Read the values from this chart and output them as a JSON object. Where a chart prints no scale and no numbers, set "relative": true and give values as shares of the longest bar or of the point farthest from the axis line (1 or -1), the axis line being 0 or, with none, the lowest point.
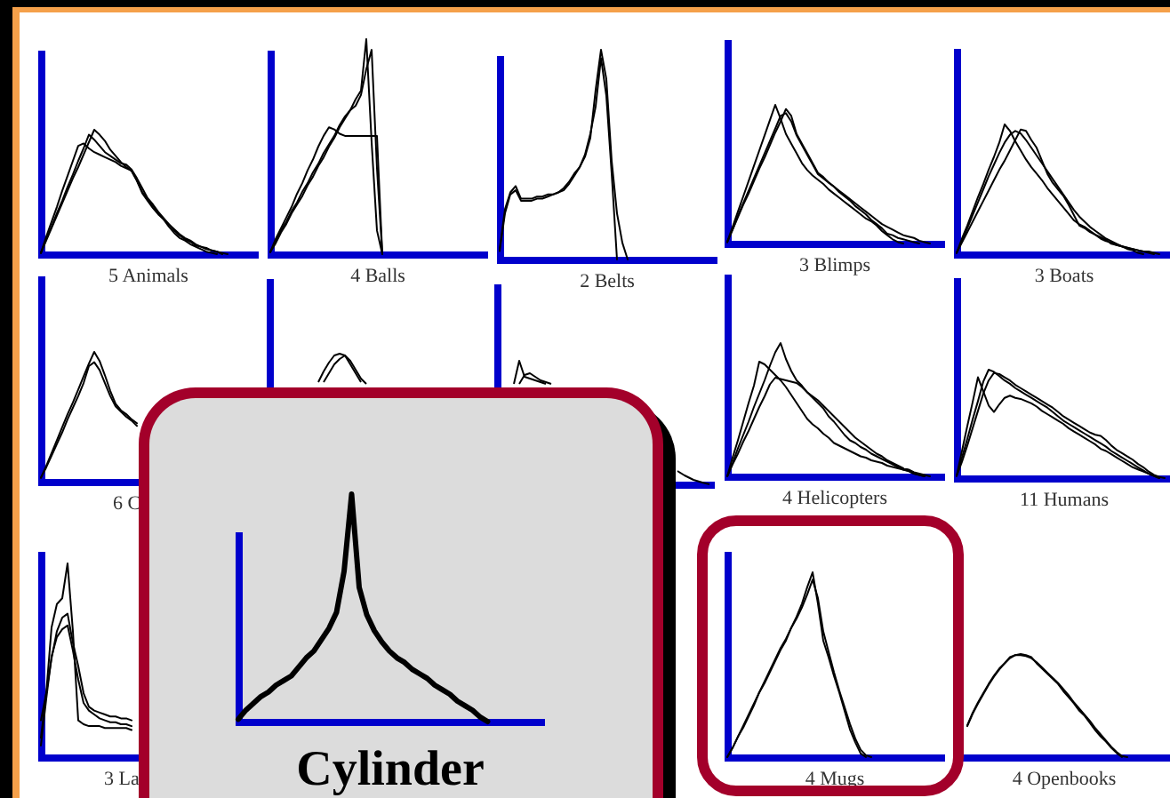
{
  "chart_data": [
    {
      "type": "line",
      "relative": true,
      "xlabel": "5 Animals",
      "categories": [
        null,
        null,
        null,
        null,
        null,
        null,
        null,
        null,
        null,
        null,
        null,
        null,
        null,
        null,
        null,
        null,
        null,
        null,
        null,
        null,
        null,
        null,
        null,
        null,
        null,
        null,
        null,
        null,
        null,
        null,
        null,
        null,
        null,
        null,
        null,
        null,
        null,
        null,
        null,
        null,
        null
      ],
      "series": [
        {
          "color": "#000000",
          "values": [
            0.01,
            0.14,
            0.26,
            0.38,
            0.51,
            0.63,
            0.75,
            0.87,
            0.89,
            0.85,
            0.82,
            0.8,
            0.78,
            0.76,
            0.74,
            0.71,
            0.69,
            0.67,
            0.59,
            0.5,
            0.44,
            0.39,
            0.33,
            0.28,
            0.24,
            0.19,
            0.15,
            0.12,
            0.1,
            0.07,
            0.06,
            0.05,
            0.03,
            0.02,
            0,
            null,
            null,
            null,
            null,
            null,
            null
          ]
        },
        {
          "color": "#000000",
          "values": [
            0.01,
            0.11,
            0.21,
            0.31,
            0.41,
            0.51,
            0.61,
            0.7,
            0.8,
            0.9,
            1.0,
            0.96,
            0.91,
            0.84,
            0.79,
            0.74,
            0.7,
            0.67,
            0.59,
            0.49,
            0.43,
            0.37,
            0.32,
            0.28,
            0.22,
            0.17,
            0.13,
            0.11,
            0.08,
            0.06,
            0.04,
            0.02,
            0.01,
            0,
            null,
            null,
            null,
            null,
            null,
            null,
            null
          ]
        },
        {
          "color": "#000000",
          "values": [
            0.01,
            0.12,
            0.22,
            0.33,
            0.43,
            0.54,
            0.64,
            0.75,
            0.85,
            0.96,
            0.92,
            0.87,
            0.82,
            0.79,
            0.76,
            0.73,
            0.72,
            0.68,
            0.61,
            0.53,
            0.45,
            0.4,
            0.34,
            0.29,
            0.24,
            0.2,
            0.16,
            0.13,
            0.11,
            0.08,
            0.06,
            0.04,
            0.03,
            0.02,
            0.01,
            0,
            null,
            null,
            null,
            null,
            null
          ]
        }
      ]
    },
    {
      "type": "line",
      "relative": true,
      "xlabel": "4 Balls",
      "categories": [
        null,
        null,
        null,
        null,
        null,
        null,
        null,
        null,
        null,
        null,
        null,
        null,
        null,
        null,
        null,
        null,
        null,
        null,
        null,
        null,
        null,
        null,
        null,
        null,
        null,
        null,
        null,
        null,
        null,
        null,
        null,
        null,
        null,
        null,
        null,
        null,
        null,
        null,
        null,
        null,
        null
      ],
      "series": [
        {
          "color": "#000000",
          "values": [
            0.01,
            0.05,
            0.1,
            0.14,
            0.19,
            0.23,
            0.27,
            0.32,
            0.36,
            0.41,
            0.45,
            0.5,
            0.54,
            0.59,
            0.63,
            0.67,
            0.72,
            0.76,
            1.0,
            0.52,
            0.11,
            0,
            null,
            null,
            null,
            null,
            null,
            null,
            null,
            null,
            null,
            null,
            null,
            null,
            null,
            null,
            null,
            null,
            null,
            null,
            null
          ]
        },
        {
          "color": "#000000",
          "values": [
            0.01,
            0.07,
            0.12,
            0.17,
            0.22,
            0.28,
            0.33,
            0.39,
            0.44,
            0.5,
            0.55,
            0.59,
            0.58,
            0.56,
            0.55,
            0.55,
            0.55,
            0.55,
            0.55,
            0.55,
            0.55,
            0,
            null,
            null,
            null,
            null,
            null,
            null,
            null,
            null,
            null,
            null,
            null,
            null,
            null,
            null,
            null,
            null,
            null,
            null,
            null
          ]
        },
        {
          "color": "#000000",
          "values": [
            0.01,
            0.06,
            0.11,
            0.15,
            0.2,
            0.24,
            0.29,
            0.33,
            0.38,
            0.42,
            0.47,
            0.51,
            0.55,
            0.6,
            0.64,
            0.67,
            0.69,
            0.74,
            0.86,
            0.95,
            0.4,
            0,
            null,
            null,
            null,
            null,
            null,
            null,
            null,
            null,
            null,
            null,
            null,
            null,
            null,
            null,
            null,
            null,
            null,
            null,
            null
          ]
        }
      ]
    },
    {
      "type": "line",
      "relative": true,
      "xlabel": "2 Belts",
      "categories": [
        null,
        null,
        null,
        null,
        null,
        null,
        null,
        null,
        null,
        null,
        null,
        null,
        null,
        null,
        null,
        null,
        null,
        null,
        null,
        null,
        null,
        null,
        null,
        null,
        null,
        null,
        null,
        null,
        null,
        null,
        null,
        null,
        null,
        null,
        null,
        null,
        null,
        null,
        null,
        null,
        null
      ],
      "series": [
        {
          "color": "#000000",
          "values": [
            0.05,
            0.24,
            0.32,
            0.35,
            0.29,
            0.29,
            0.29,
            0.3,
            0.3,
            0.31,
            0.31,
            0.32,
            0.34,
            0.37,
            0.41,
            0.44,
            0.49,
            0.58,
            0.81,
            1.0,
            0.86,
            0.47,
            0.22,
            0.08,
            0,
            null,
            null,
            null,
            null,
            null,
            null,
            null,
            null,
            null,
            null,
            null,
            null,
            null,
            null,
            null,
            null
          ]
        },
        {
          "color": "#000000",
          "values": [
            0.04,
            0.22,
            0.31,
            0.33,
            0.28,
            0.28,
            0.28,
            0.29,
            0.29,
            0.3,
            0.31,
            0.32,
            0.33,
            0.36,
            0.4,
            0.44,
            0.5,
            0.6,
            0.73,
            0.96,
            0.78,
            0.41,
            0,
            null,
            null,
            null,
            null,
            null,
            null,
            null,
            null,
            null,
            null,
            null,
            null,
            null,
            null,
            null,
            null,
            null,
            null
          ]
        }
      ]
    },
    {
      "type": "line",
      "relative": true,
      "xlabel": "3 Blimps",
      "categories": [
        null,
        null,
        null,
        null,
        null,
        null,
        null,
        null,
        null,
        null,
        null,
        null,
        null,
        null,
        null,
        null,
        null,
        null,
        null,
        null,
        null,
        null,
        null,
        null,
        null,
        null,
        null,
        null,
        null,
        null,
        null,
        null,
        null,
        null,
        null,
        null,
        null,
        null,
        null,
        null,
        null
      ],
      "series": [
        {
          "color": "#000000",
          "values": [
            0.01,
            0.12,
            0.23,
            0.34,
            0.45,
            0.56,
            0.67,
            0.78,
            0.89,
            1.0,
            0.9,
            0.79,
            0.72,
            0.65,
            0.58,
            0.53,
            0.49,
            0.46,
            0.43,
            0.39,
            0.36,
            0.33,
            0.3,
            0.27,
            0.24,
            0.21,
            0.18,
            0.16,
            0.13,
            0.09,
            0.06,
            0.03,
            0.01,
            0,
            null,
            null,
            null,
            null,
            null,
            null,
            null
          ]
        },
        {
          "color": "#000000",
          "values": [
            0.01,
            0.1,
            0.19,
            0.28,
            0.36,
            0.45,
            0.54,
            0.62,
            0.71,
            0.8,
            0.88,
            0.97,
            0.92,
            0.79,
            0.72,
            0.65,
            0.58,
            0.51,
            0.48,
            0.44,
            0.41,
            0.37,
            0.34,
            0.31,
            0.27,
            0.24,
            0.21,
            0.17,
            0.14,
            0.11,
            0.07,
            0.06,
            0.04,
            0.03,
            0.02,
            0.01,
            0,
            null,
            null,
            null,
            null
          ]
        },
        {
          "color": "#000000",
          "values": [
            0.01,
            0.1,
            0.2,
            0.29,
            0.38,
            0.47,
            0.56,
            0.65,
            0.74,
            0.83,
            0.92,
            0.94,
            0.88,
            0.78,
            0.71,
            0.64,
            0.57,
            0.5,
            0.47,
            0.44,
            0.41,
            0.38,
            0.35,
            0.32,
            0.29,
            0.26,
            0.23,
            0.2,
            0.17,
            0.14,
            0.12,
            0.1,
            0.08,
            0.06,
            0.05,
            0.04,
            0.02,
            0.01,
            0,
            null,
            null
          ]
        }
      ]
    },
    {
      "type": "line",
      "relative": true,
      "xlabel": "3 Boats",
      "categories": [
        null,
        null,
        null,
        null,
        null,
        null,
        null,
        null,
        null,
        null,
        null,
        null,
        null,
        null,
        null,
        null,
        null,
        null,
        null,
        null,
        null,
        null,
        null,
        null,
        null,
        null,
        null,
        null,
        null,
        null,
        null,
        null,
        null,
        null,
        null,
        null,
        null,
        null,
        null,
        null,
        null
      ],
      "series": [
        {
          "color": "#000000",
          "values": [
            0.01,
            0.12,
            0.22,
            0.33,
            0.44,
            0.54,
            0.65,
            0.75,
            0.86,
            1.0,
            0.95,
            0.87,
            0.8,
            0.73,
            0.67,
            0.62,
            0.57,
            0.51,
            0.46,
            0.41,
            0.36,
            0.31,
            0.26,
            0.23,
            0.21,
            0.18,
            0.15,
            0.12,
            0.1,
            0.09,
            0.07,
            0.06,
            0.04,
            0.03,
            0.01,
            0,
            null,
            null,
            null,
            null,
            null
          ]
        },
        {
          "color": "#000000",
          "values": [
            0.01,
            0.09,
            0.17,
            0.25,
            0.33,
            0.41,
            0.49,
            0.57,
            0.65,
            0.72,
            0.8,
            0.88,
            0.96,
            0.95,
            0.88,
            0.82,
            0.72,
            0.62,
            0.55,
            0.5,
            0.45,
            0.38,
            0.3,
            0.22,
            0.2,
            0.17,
            0.15,
            0.13,
            0.11,
            0.08,
            0.07,
            0.06,
            0.05,
            0.04,
            0.03,
            0.02,
            0.02,
            0.01,
            0,
            null,
            null
          ]
        },
        {
          "color": "#000000",
          "values": [
            0.01,
            0.1,
            0.2,
            0.3,
            0.4,
            0.5,
            0.6,
            0.69,
            0.78,
            0.86,
            0.92,
            0.95,
            0.93,
            0.88,
            0.82,
            0.76,
            0.7,
            0.64,
            0.58,
            0.52,
            0.46,
            0.4,
            0.34,
            0.29,
            0.25,
            0.21,
            0.18,
            0.15,
            0.12,
            0.1,
            0.08,
            0.06,
            0.05,
            0.04,
            0.03,
            0.02,
            0.01,
            0,
            null,
            null,
            null
          ]
        }
      ]
    },
    {
      "type": "line",
      "relative": true,
      "xlabel": "6 C",
      "categories": [
        null,
        null,
        null,
        null,
        null,
        null,
        null,
        null,
        null,
        null,
        null,
        null,
        null,
        null,
        null,
        null,
        null,
        null,
        null,
        null,
        null,
        null,
        null,
        null,
        null,
        null,
        null,
        null,
        null,
        null,
        null,
        null,
        null,
        null,
        null,
        null,
        null,
        null,
        null,
        null,
        null
      ],
      "series": [
        {
          "color": "#000000",
          "values": [
            0.03,
            0.12,
            0.22,
            0.32,
            0.42,
            0.52,
            0.61,
            0.71,
            0.81,
            0.91,
            1.0,
            0.93,
            0.82,
            0.7,
            0.6,
            0.55,
            0.52,
            0.48,
            0.45,
            null,
            null,
            null,
            null,
            null,
            null,
            null,
            null,
            null,
            null,
            null,
            null,
            null,
            null,
            null,
            null,
            null,
            null,
            null,
            null,
            null,
            null
          ]
        },
        {
          "color": "#000000",
          "values": [
            0.03,
            0.11,
            0.2,
            0.29,
            0.38,
            0.48,
            0.57,
            0.66,
            0.76,
            0.89,
            0.92,
            0.86,
            0.76,
            0.66,
            0.58,
            0.54,
            0.5,
            0.47,
            0.43,
            null,
            null,
            null,
            null,
            null,
            null,
            null,
            null,
            null,
            null,
            null,
            null,
            null,
            null,
            null,
            null,
            null,
            null,
            null,
            null,
            null,
            null
          ]
        }
      ]
    },
    {
      "type": "line",
      "relative": true,
      "xlabel": "4 Helicopters",
      "categories": [
        null,
        null,
        null,
        null,
        null,
        null,
        null,
        null,
        null,
        null,
        null,
        null,
        null,
        null,
        null,
        null,
        null,
        null,
        null,
        null,
        null,
        null,
        null,
        null,
        null,
        null,
        null,
        null,
        null,
        null,
        null,
        null,
        null,
        null,
        null,
        null,
        null,
        null,
        null,
        null,
        null
      ],
      "series": [
        {
          "color": "#000000",
          "values": [
            0,
            0.1,
            0.21,
            0.31,
            0.41,
            0.52,
            0.62,
            0.72,
            0.83,
            0.93,
            1.0,
            0.88,
            0.79,
            0.72,
            0.68,
            0.63,
            0.59,
            0.55,
            0.51,
            0.45,
            0.41,
            0.36,
            0.31,
            0.27,
            0.25,
            0.22,
            0.2,
            0.17,
            0.15,
            0.13,
            0.11,
            0.09,
            0.07,
            0.05,
            0.04,
            0.02,
            0.01,
            0,
            null,
            null,
            null
          ]
        },
        {
          "color": "#000000",
          "values": [
            0,
            0.14,
            0.27,
            0.41,
            0.55,
            0.68,
            0.86,
            0.84,
            0.8,
            0.76,
            0.72,
            0.67,
            0.61,
            0.55,
            0.49,
            0.43,
            0.39,
            0.36,
            0.32,
            0.29,
            0.25,
            0.23,
            0.21,
            0.19,
            0.17,
            0.15,
            0.14,
            0.12,
            0.11,
            0.1,
            0.08,
            0.07,
            0.06,
            0.05,
            0.04,
            0.02,
            0.01,
            0,
            null,
            null,
            null
          ]
        },
        {
          "color": "#000000",
          "values": [
            0,
            0.09,
            0.17,
            0.26,
            0.34,
            0.43,
            0.52,
            0.6,
            0.69,
            0.74,
            0.73,
            0.72,
            0.71,
            0.7,
            0.67,
            0.63,
            0.6,
            0.57,
            0.53,
            0.49,
            0.45,
            0.41,
            0.37,
            0.33,
            0.29,
            0.26,
            0.23,
            0.2,
            0.17,
            0.15,
            0.12,
            0.1,
            0.08,
            0.06,
            0.05,
            0.03,
            0.02,
            0.01,
            0,
            null,
            null
          ]
        }
      ]
    },
    {
      "type": "line",
      "relative": true,
      "xlabel": "11 Humans",
      "categories": [
        null,
        null,
        null,
        null,
        null,
        null,
        null,
        null,
        null,
        null,
        null,
        null,
        null,
        null,
        null,
        null,
        null,
        null,
        null,
        null,
        null,
        null,
        null,
        null,
        null,
        null,
        null,
        null,
        null,
        null,
        null,
        null,
        null,
        null,
        null,
        null,
        null,
        null,
        null,
        null,
        null
      ],
      "series": [
        {
          "color": "#000000",
          "values": [
            0.02,
            0.19,
            0.36,
            0.54,
            0.71,
            0.89,
            1.0,
            0.98,
            0.94,
            0.9,
            0.87,
            0.83,
            0.8,
            0.77,
            0.74,
            0.71,
            0.68,
            0.65,
            0.61,
            0.57,
            0.53,
            0.5,
            0.47,
            0.44,
            0.41,
            0.38,
            0.35,
            0.32,
            0.29,
            0.25,
            0.22,
            0.19,
            0.16,
            0.13,
            0.1,
            0.07,
            0.04,
            0.02,
            0,
            null,
            null
          ]
        },
        {
          "color": "#000000",
          "values": [
            0.02,
            0.15,
            0.3,
            0.46,
            0.62,
            0.78,
            0.9,
            0.97,
            0.96,
            0.93,
            0.9,
            0.86,
            0.83,
            0.8,
            0.77,
            0.74,
            0.71,
            0.68,
            0.65,
            0.61,
            0.57,
            0.54,
            0.51,
            0.48,
            0.45,
            0.42,
            0.4,
            0.39,
            0.35,
            0.3,
            0.26,
            0.23,
            0.2,
            0.17,
            0.13,
            0.1,
            0.06,
            0.03,
            0.01,
            0,
            null
          ]
        },
        {
          "color": "#000000",
          "values": [
            0.02,
            0.25,
            0.48,
            0.7,
            0.93,
            0.8,
            0.67,
            0.61,
            0.68,
            0.74,
            0.76,
            0.74,
            0.73,
            0.71,
            0.69,
            0.66,
            0.62,
            0.59,
            0.56,
            0.53,
            0.5,
            0.46,
            0.43,
            0.4,
            0.37,
            0.34,
            0.31,
            0.27,
            0.25,
            0.22,
            0.19,
            0.16,
            0.13,
            0.1,
            0.08,
            0.06,
            0.04,
            0.02,
            0,
            null,
            null
          ]
        }
      ]
    },
    {
      "type": "line",
      "relative": true,
      "xlabel": "3 La",
      "categories": [
        null,
        null,
        null,
        null,
        null,
        null,
        null,
        null,
        null,
        null,
        null,
        null,
        null,
        null,
        null,
        null,
        null,
        null,
        null,
        null,
        null,
        null,
        null,
        null,
        null,
        null,
        null,
        null,
        null,
        null,
        null,
        null,
        null,
        null,
        null,
        null,
        null,
        null,
        null,
        null,
        null
      ],
      "series": [
        {
          "color": "#000000",
          "values": [
            0.19,
            0.33,
            0.67,
            0.79,
            0.82,
            1.0,
            0.65,
            0.19,
            0.17,
            0.16,
            0.16,
            0.16,
            0.15,
            0.15,
            0.15,
            0.15,
            0.15,
            0.14,
            null,
            null,
            null,
            null,
            null,
            null,
            null,
            null,
            null,
            null,
            null,
            null,
            null,
            null,
            null,
            null,
            null,
            null,
            null,
            null,
            null,
            null,
            null
          ]
        },
        {
          "color": "#000000",
          "values": [
            0.1,
            0.33,
            0.51,
            0.65,
            0.72,
            0.74,
            0.59,
            0.47,
            0.33,
            0.26,
            0.24,
            0.23,
            0.22,
            0.21,
            0.21,
            0.2,
            0.2,
            0.19,
            null,
            null,
            null,
            null,
            null,
            null,
            null,
            null,
            null,
            null,
            null,
            null,
            null,
            null,
            null,
            null,
            null,
            null,
            null,
            null,
            null,
            null,
            null
          ]
        },
        {
          "color": "#000000",
          "values": [
            0.06,
            0.3,
            0.52,
            0.62,
            0.66,
            0.68,
            0.55,
            0.4,
            0.28,
            0.24,
            0.22,
            0.2,
            0.19,
            0.18,
            0.18,
            0.17,
            0.17,
            0.16,
            null,
            null,
            null,
            null,
            null,
            null,
            null,
            null,
            null,
            null,
            null,
            null,
            null,
            null,
            null,
            null,
            null,
            null,
            null,
            null,
            null,
            null,
            null
          ]
        }
      ]
    },
    {
      "type": "line",
      "relative": true,
      "xlabel": "4 Mugs",
      "categories": [
        null,
        null,
        null,
        null,
        null,
        null,
        null,
        null,
        null,
        null,
        null,
        null,
        null,
        null,
        null,
        null,
        null,
        null,
        null,
        null,
        null,
        null,
        null,
        null,
        null,
        null,
        null,
        null,
        null,
        null,
        null,
        null,
        null,
        null,
        null,
        null,
        null,
        null,
        null,
        null,
        null
      ],
      "series": [
        {
          "color": "#000000",
          "values": [
            0,
            0.05,
            0.11,
            0.16,
            0.22,
            0.28,
            0.35,
            0.4,
            0.46,
            0.52,
            0.58,
            0.63,
            0.7,
            0.76,
            0.83,
            0.92,
            1.0,
            0.83,
            0.63,
            0.54,
            0.44,
            0.35,
            0.25,
            0.15,
            0.08,
            0.02,
            0,
            null,
            null,
            null,
            null,
            null,
            null,
            null,
            null,
            null,
            null,
            null,
            null,
            null,
            null
          ]
        },
        {
          "color": "#000000",
          "values": [
            0,
            0.05,
            0.11,
            0.17,
            0.23,
            0.29,
            0.35,
            0.41,
            0.47,
            0.53,
            0.59,
            0.64,
            0.7,
            0.75,
            0.81,
            0.88,
            0.96,
            0.86,
            0.68,
            0.57,
            0.46,
            0.36,
            0.27,
            0.18,
            0.1,
            0.04,
            0.01,
            0,
            null,
            null,
            null,
            null,
            null,
            null,
            null,
            null,
            null,
            null,
            null,
            null,
            null
          ]
        }
      ]
    },
    {
      "type": "line",
      "relative": true,
      "xlabel": "4 Openbooks",
      "categories": [
        null,
        null,
        null,
        null,
        null,
        null,
        null,
        null,
        null,
        null,
        null,
        null,
        null,
        null,
        null,
        null,
        null,
        null,
        null,
        null,
        null,
        null,
        null,
        null,
        null,
        null,
        null,
        null,
        null,
        null,
        null,
        null,
        null,
        null,
        null,
        null,
        null,
        null,
        null,
        null,
        null
      ],
      "series": [
        {
          "color": "#000000",
          "values": [
            null,
            null,
            0.31,
            0.43,
            0.53,
            0.62,
            0.71,
            0.79,
            0.86,
            0.91,
            0.97,
            0.99,
            1.0,
            0.99,
            0.97,
            0.91,
            0.86,
            0.81,
            0.76,
            0.71,
            0.64,
            0.58,
            0.52,
            0.45,
            0.4,
            0.33,
            0.26,
            0.2,
            0.15,
            0.09,
            0.04,
            0,
            null,
            null,
            null,
            null,
            null,
            null,
            null,
            null,
            null
          ]
        },
        {
          "color": "#000000",
          "values": [
            null,
            null,
            0.3,
            0.42,
            0.52,
            0.61,
            0.7,
            0.78,
            0.85,
            0.91,
            0.96,
            0.99,
            0.99,
            0.98,
            0.96,
            0.92,
            0.87,
            0.82,
            0.77,
            0.72,
            0.66,
            0.6,
            0.53,
            0.47,
            0.41,
            0.35,
            0.28,
            0.22,
            0.16,
            0.1,
            0.05,
            0.01,
            0,
            null,
            null,
            null,
            null,
            null,
            null,
            null,
            null
          ]
        }
      ]
    },
    {
      "type": "line",
      "relative": true,
      "xlabel": "Cylinder",
      "categories": [
        null,
        null,
        null,
        null,
        null,
        null,
        null,
        null,
        null,
        null,
        null,
        null,
        null,
        null,
        null,
        null,
        null,
        null,
        null,
        null,
        null,
        null,
        null,
        null,
        null,
        null,
        null,
        null,
        null,
        null,
        null,
        null,
        null,
        null,
        null,
        null,
        null,
        null,
        null,
        null,
        null
      ],
      "series": [
        {
          "color": "#000000",
          "values": [
            0.01,
            0.05,
            0.08,
            0.11,
            0.13,
            0.16,
            0.18,
            0.2,
            0.24,
            0.28,
            0.31,
            0.36,
            0.41,
            0.48,
            0.66,
            1.0,
            0.59,
            0.47,
            0.4,
            0.35,
            0.31,
            0.28,
            0.26,
            0.23,
            0.21,
            0.19,
            0.16,
            0.14,
            0.12,
            0.09,
            0.07,
            0.05,
            0.02,
            0,
            null,
            null,
            null,
            null,
            null,
            null,
            null
          ]
        }
      ]
    }
  ]
}
